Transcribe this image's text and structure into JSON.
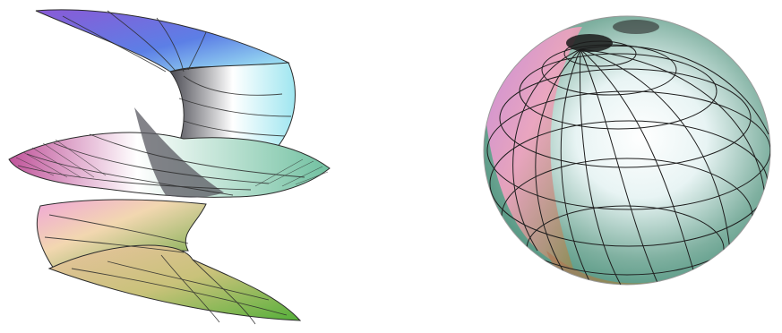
{
  "figures": [
    {
      "id": "helicoid-surface",
      "subject": "twisted-ribbon-surface-icon"
    },
    {
      "id": "pinched-sphere-surface",
      "subject": "gridded-sphere-icon"
    }
  ],
  "colors": {
    "background": "#ffffff",
    "purple": "#8a5ad6",
    "blue": "#5c7fe6",
    "cyan": "#a8f4f4",
    "pink": "#f0a6d8",
    "magenta": "#c0539a",
    "green": "#6ea844",
    "teal": "#3f8a73",
    "olive": "#8b8a4a",
    "grid": "#2c2c2c"
  }
}
